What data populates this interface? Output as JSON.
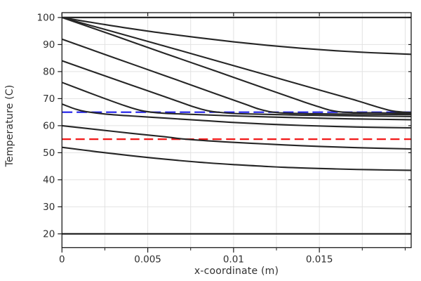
{
  "figure": {
    "background": "#ffffff",
    "border_color": "#1a1a1a",
    "grid_color": "#e2e2e2",
    "curve_color": "#262626",
    "accent_blue": "#1f1fe8",
    "accent_red": "#f21818"
  },
  "chart_data": {
    "type": "line",
    "title": "",
    "xlabel": "x-coordinate (m)",
    "ylabel": "Temperature (C)",
    "xlim": [
      0,
      0.02035
    ],
    "ylim": [
      14.9,
      101.8
    ],
    "grid": true,
    "legend": "none",
    "x_major_ticks": [
      0,
      0.005,
      0.01,
      0.015
    ],
    "x_tick_labels": [
      "0",
      "0.005",
      "0.01",
      "0.015"
    ],
    "x_minor_ticks": [
      0.0025,
      0.0075,
      0.0125,
      0.0175,
      0.02
    ],
    "x_gridlines": [
      0.0025,
      0.005,
      0.0075,
      0.01,
      0.0125,
      0.015,
      0.0175,
      0.02
    ],
    "y_major_ticks": [
      20,
      30,
      40,
      50,
      60,
      70,
      80,
      90,
      100
    ],
    "y_tick_labels": [
      "20",
      "30",
      "40",
      "50",
      "60",
      "70",
      "80",
      "90",
      "100"
    ],
    "series": [
      {
        "name": "initial profile 100 C (flat)",
        "color": "#262626",
        "width": 2.2,
        "dash": "",
        "points": [
          [
            0,
            100
          ],
          [
            0.02035,
            100
          ]
        ]
      },
      {
        "name": "profile flattening to 86 C",
        "color": "#262626",
        "width": 2.1,
        "dash": "",
        "points": [
          [
            0,
            100
          ],
          [
            0.002,
            97.9
          ],
          [
            0.004,
            95.9
          ],
          [
            0.006,
            94.1
          ],
          [
            0.008,
            92.5
          ],
          [
            0.01,
            91.0
          ],
          [
            0.012,
            89.7
          ],
          [
            0.014,
            88.6
          ],
          [
            0.016,
            87.7
          ],
          [
            0.018,
            87.0
          ],
          [
            0.02035,
            86.4
          ]
        ]
      },
      {
        "name": "profile knee at x=0.0192",
        "color": "#262626",
        "width": 2.1,
        "dash": "",
        "points": [
          [
            0,
            100
          ],
          [
            0.003,
            94.7
          ],
          [
            0.006,
            89.4
          ],
          [
            0.009,
            84.0
          ],
          [
            0.012,
            78.6
          ],
          [
            0.015,
            73.2
          ],
          [
            0.017,
            69.6
          ],
          [
            0.0185,
            66.7
          ],
          [
            0.0192,
            65.5
          ],
          [
            0.0199,
            64.98
          ],
          [
            0.02035,
            64.9
          ]
        ]
      },
      {
        "name": "profile knee at x=0.0158",
        "color": "#262626",
        "width": 2.1,
        "dash": "",
        "points": [
          [
            0,
            100
          ],
          [
            0.003,
            93.4
          ],
          [
            0.006,
            86.7
          ],
          [
            0.009,
            80.1
          ],
          [
            0.012,
            73.4
          ],
          [
            0.014,
            69.0
          ],
          [
            0.015,
            66.9
          ],
          [
            0.0157,
            65.6
          ],
          [
            0.0165,
            64.95
          ],
          [
            0.018,
            64.75
          ],
          [
            0.02035,
            64.6
          ]
        ]
      },
      {
        "name": "profile starting 92 C",
        "color": "#262626",
        "width": 2.1,
        "dash": "",
        "points": [
          [
            0,
            92
          ],
          [
            0.003,
            85.2
          ],
          [
            0.006,
            78.5
          ],
          [
            0.009,
            71.7
          ],
          [
            0.0107,
            67.9
          ],
          [
            0.0115,
            66.1
          ],
          [
            0.0122,
            65.1
          ],
          [
            0.0132,
            64.6
          ],
          [
            0.016,
            64.3
          ],
          [
            0.02035,
            64.1
          ]
        ]
      },
      {
        "name": "profile starting 84 C",
        "color": "#262626",
        "width": 2.1,
        "dash": "",
        "points": [
          [
            0,
            84
          ],
          [
            0.003,
            77.3
          ],
          [
            0.006,
            70.7
          ],
          [
            0.0077,
            66.9
          ],
          [
            0.0085,
            65.5
          ],
          [
            0.0092,
            64.9
          ],
          [
            0.0105,
            64.4
          ],
          [
            0.014,
            63.9
          ],
          [
            0.02035,
            63.4
          ]
        ]
      },
      {
        "name": "profile starting 76 C",
        "color": "#262626",
        "width": 2.1,
        "dash": "",
        "points": [
          [
            0,
            76
          ],
          [
            0.002,
            71.2
          ],
          [
            0.0037,
            67.3
          ],
          [
            0.0046,
            65.6
          ],
          [
            0.0055,
            64.8
          ],
          [
            0.007,
            64.3
          ],
          [
            0.01,
            63.6
          ],
          [
            0.014,
            62.9
          ],
          [
            0.017,
            62.5
          ],
          [
            0.02035,
            62.2
          ]
        ]
      },
      {
        "name": "profile starting 68 C",
        "color": "#262626",
        "width": 2.1,
        "dash": "",
        "points": [
          [
            0,
            68
          ],
          [
            0.0008,
            66.1
          ],
          [
            0.0014,
            65.2
          ],
          [
            0.0025,
            64.3
          ],
          [
            0.004,
            63.6
          ],
          [
            0.006,
            62.8
          ],
          [
            0.008,
            62.0
          ],
          [
            0.01,
            61.2
          ],
          [
            0.013,
            60.3
          ],
          [
            0.016,
            59.7
          ],
          [
            0.018,
            59.4
          ],
          [
            0.02035,
            59.2
          ]
        ]
      },
      {
        "name": "profile starting 60 C",
        "color": "#262626",
        "width": 2.1,
        "dash": "",
        "points": [
          [
            0,
            60
          ],
          [
            0.002,
            58.6
          ],
          [
            0.004,
            57.2
          ],
          [
            0.006,
            55.9
          ],
          [
            0.0072,
            55.0
          ],
          [
            0.009,
            54.2
          ],
          [
            0.011,
            53.5
          ],
          [
            0.014,
            52.6
          ],
          [
            0.017,
            51.9
          ],
          [
            0.02035,
            51.4
          ]
        ]
      },
      {
        "name": "profile starting 52 C",
        "color": "#262626",
        "width": 2.1,
        "dash": "",
        "points": [
          [
            0,
            52
          ],
          [
            0.002,
            50.4
          ],
          [
            0.004,
            48.9
          ],
          [
            0.006,
            47.6
          ],
          [
            0.008,
            46.5
          ],
          [
            0.01,
            45.6
          ],
          [
            0.013,
            44.6
          ],
          [
            0.016,
            44.0
          ],
          [
            0.018,
            43.7
          ],
          [
            0.02035,
            43.5
          ]
        ]
      },
      {
        "name": "final profile 20 C (flat)",
        "color": "#262626",
        "width": 2.2,
        "dash": "",
        "points": [
          [
            0,
            20
          ],
          [
            0.02035,
            20
          ]
        ]
      },
      {
        "name": "reference line 65 C (dashed blue)",
        "color": "#1f1fe8",
        "width": 2.2,
        "dash": "15,6",
        "points": [
          [
            0,
            65
          ],
          [
            0.02035,
            65
          ]
        ]
      },
      {
        "name": "reference line 55 C (dashed red)",
        "color": "#f21818",
        "width": 2.2,
        "dash": "13,6.5",
        "points": [
          [
            0,
            55
          ],
          [
            0.02035,
            55
          ]
        ]
      }
    ]
  }
}
